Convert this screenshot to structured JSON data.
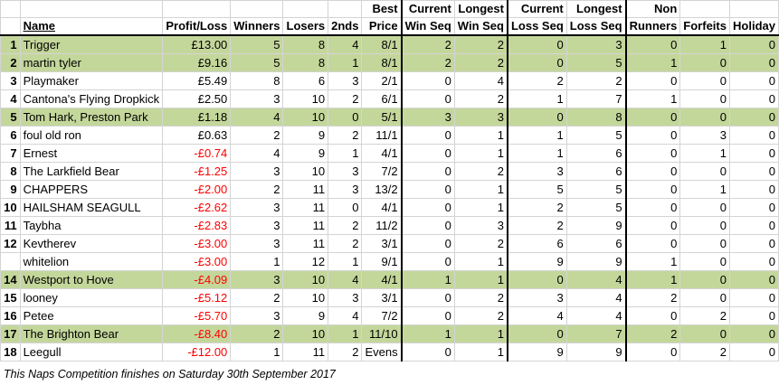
{
  "headers": {
    "row1": [
      "",
      "",
      "",
      "",
      "",
      "",
      "Best",
      "Current",
      "Longest",
      "Current",
      "Longest",
      "Non",
      "",
      ""
    ],
    "row2": [
      "",
      "Name",
      "Profit/Loss",
      "Winners",
      "Losers",
      "2nds",
      "Price",
      "Win Seq",
      "Win Seq",
      "Loss Seq",
      "Loss Seq",
      "Runners",
      "Forfeits",
      "Holiday"
    ]
  },
  "rows": [
    {
      "rank": "1",
      "name": "Trigger",
      "pl": "£13.00",
      "neg": false,
      "hl": true,
      "winners": "5",
      "losers": "8",
      "seconds": "4",
      "best": "8/1",
      "cws": "2",
      "lws": "2",
      "cls": "0",
      "lls": "3",
      "nr": "0",
      "forfeits": "1",
      "holiday": "0"
    },
    {
      "rank": "2",
      "name": "martin tyler",
      "pl": "£9.16",
      "neg": false,
      "hl": true,
      "winners": "5",
      "losers": "8",
      "seconds": "1",
      "best": "8/1",
      "cws": "2",
      "lws": "2",
      "cls": "0",
      "lls": "5",
      "nr": "1",
      "forfeits": "0",
      "holiday": "0"
    },
    {
      "rank": "3",
      "name": "Playmaker",
      "pl": "£5.49",
      "neg": false,
      "hl": false,
      "winners": "8",
      "losers": "6",
      "seconds": "3",
      "best": "2/1",
      "cws": "0",
      "lws": "4",
      "cls": "2",
      "lls": "2",
      "nr": "0",
      "forfeits": "0",
      "holiday": "0"
    },
    {
      "rank": "4",
      "name": "Cantona's Flying Dropkick",
      "pl": "£2.50",
      "neg": false,
      "hl": false,
      "winners": "3",
      "losers": "10",
      "seconds": "2",
      "best": "6/1",
      "cws": "0",
      "lws": "2",
      "cls": "1",
      "lls": "7",
      "nr": "1",
      "forfeits": "0",
      "holiday": "0"
    },
    {
      "rank": "5",
      "name": "Tom Hark, Preston Park",
      "pl": "£1.18",
      "neg": false,
      "hl": true,
      "winners": "4",
      "losers": "10",
      "seconds": "0",
      "best": "5/1",
      "cws": "3",
      "lws": "3",
      "cls": "0",
      "lls": "8",
      "nr": "0",
      "forfeits": "0",
      "holiday": "0"
    },
    {
      "rank": "6",
      "name": "foul old ron",
      "pl": "£0.63",
      "neg": false,
      "hl": false,
      "winners": "2",
      "losers": "9",
      "seconds": "2",
      "best": "11/1",
      "cws": "0",
      "lws": "1",
      "cls": "1",
      "lls": "5",
      "nr": "0",
      "forfeits": "3",
      "holiday": "0"
    },
    {
      "rank": "7",
      "name": "Ernest",
      "pl": "-£0.74",
      "neg": true,
      "hl": false,
      "winners": "4",
      "losers": "9",
      "seconds": "1",
      "best": "4/1",
      "cws": "0",
      "lws": "1",
      "cls": "1",
      "lls": "6",
      "nr": "0",
      "forfeits": "1",
      "holiday": "0"
    },
    {
      "rank": "8",
      "name": "The Larkfield Bear",
      "pl": "-£1.25",
      "neg": true,
      "hl": false,
      "winners": "3",
      "losers": "10",
      "seconds": "3",
      "best": "7/2",
      "cws": "0",
      "lws": "2",
      "cls": "3",
      "lls": "6",
      "nr": "0",
      "forfeits": "0",
      "holiday": "0"
    },
    {
      "rank": "9",
      "name": "CHAPPERS",
      "pl": "-£2.00",
      "neg": true,
      "hl": false,
      "winners": "2",
      "losers": "11",
      "seconds": "3",
      "best": "13/2",
      "cws": "0",
      "lws": "1",
      "cls": "5",
      "lls": "5",
      "nr": "0",
      "forfeits": "1",
      "holiday": "0"
    },
    {
      "rank": "10",
      "name": "HAILSHAM SEAGULL",
      "pl": "-£2.62",
      "neg": true,
      "hl": false,
      "winners": "3",
      "losers": "11",
      "seconds": "0",
      "best": "4/1",
      "cws": "0",
      "lws": "1",
      "cls": "2",
      "lls": "5",
      "nr": "0",
      "forfeits": "0",
      "holiday": "0"
    },
    {
      "rank": "11",
      "name": "Taybha",
      "pl": "-£2.83",
      "neg": true,
      "hl": false,
      "winners": "3",
      "losers": "11",
      "seconds": "2",
      "best": "11/2",
      "cws": "0",
      "lws": "3",
      "cls": "2",
      "lls": "9",
      "nr": "0",
      "forfeits": "0",
      "holiday": "0"
    },
    {
      "rank": "12",
      "name": "Kevtherev",
      "pl": "-£3.00",
      "neg": true,
      "hl": false,
      "winners": "3",
      "losers": "11",
      "seconds": "2",
      "best": "3/1",
      "cws": "0",
      "lws": "2",
      "cls": "6",
      "lls": "6",
      "nr": "0",
      "forfeits": "0",
      "holiday": "0"
    },
    {
      "rank": "",
      "name": "whitelion",
      "pl": "-£3.00",
      "neg": true,
      "hl": false,
      "winners": "1",
      "losers": "12",
      "seconds": "1",
      "best": "9/1",
      "cws": "0",
      "lws": "1",
      "cls": "9",
      "lls": "9",
      "nr": "1",
      "forfeits": "0",
      "holiday": "0"
    },
    {
      "rank": "14",
      "name": "Westport to Hove",
      "pl": "-£4.09",
      "neg": true,
      "hl": true,
      "winners": "3",
      "losers": "10",
      "seconds": "4",
      "best": "4/1",
      "cws": "1",
      "lws": "1",
      "cls": "0",
      "lls": "4",
      "nr": "1",
      "forfeits": "0",
      "holiday": "0"
    },
    {
      "rank": "15",
      "name": "looney",
      "pl": "-£5.12",
      "neg": true,
      "hl": false,
      "winners": "2",
      "losers": "10",
      "seconds": "3",
      "best": "3/1",
      "cws": "0",
      "lws": "2",
      "cls": "3",
      "lls": "4",
      "nr": "2",
      "forfeits": "0",
      "holiday": "0"
    },
    {
      "rank": "16",
      "name": "Petee",
      "pl": "-£5.70",
      "neg": true,
      "hl": false,
      "winners": "3",
      "losers": "9",
      "seconds": "4",
      "best": "7/2",
      "cws": "0",
      "lws": "2",
      "cls": "4",
      "lls": "4",
      "nr": "0",
      "forfeits": "2",
      "holiday": "0"
    },
    {
      "rank": "17",
      "name": "The Brighton Bear",
      "pl": "-£8.40",
      "neg": true,
      "hl": true,
      "winners": "2",
      "losers": "10",
      "seconds": "1",
      "best": "11/10",
      "cws": "1",
      "lws": "1",
      "cls": "0",
      "lls": "7",
      "nr": "2",
      "forfeits": "0",
      "holiday": "0"
    },
    {
      "rank": "18",
      "name": "Leegull",
      "pl": "-£12.00",
      "neg": true,
      "hl": false,
      "winners": "1",
      "losers": "11",
      "seconds": "2",
      "best": "Evens",
      "cws": "0",
      "lws": "1",
      "cls": "9",
      "lls": "9",
      "nr": "0",
      "forfeits": "2",
      "holiday": "0"
    }
  ],
  "footer": "This Naps Competition finishes on Saturday 30th September 2017"
}
